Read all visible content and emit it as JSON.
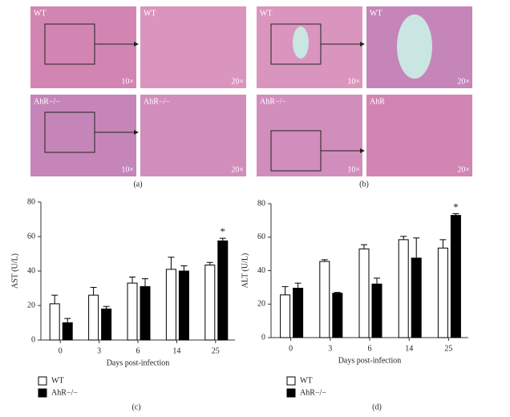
{
  "figure": {
    "panels": [
      {
        "label": "(a)",
        "tiles": [
          {
            "genotype": "WT",
            "magnification": "10×"
          },
          {
            "genotype": "WT",
            "magnification": "20×"
          },
          {
            "genotype": "AhR−/−",
            "magnification": "10×"
          },
          {
            "genotype": "AhR−/−",
            "magnification": "20×"
          }
        ]
      },
      {
        "label": "(b)",
        "tiles": [
          {
            "genotype": "WT",
            "magnification": "10×"
          },
          {
            "genotype": "WT",
            "magnification": "20×"
          },
          {
            "genotype": "AhR−/−",
            "magnification": "10×"
          },
          {
            "genotype": "AhR",
            "magnification": "20×"
          }
        ]
      }
    ]
  },
  "chart_data": [
    {
      "type": "bar",
      "panel_label": "(c)",
      "y_label": "AST (U/L)",
      "x_label": "Days post-infection",
      "categories": [
        "0",
        "3",
        "6",
        "14",
        "25"
      ],
      "ylim": [
        0,
        80
      ],
      "yticks": [
        0,
        20,
        40,
        60,
        80
      ],
      "annotation": "*",
      "series": [
        {
          "name": "WT",
          "color": "#ffffff",
          "values": [
            21,
            26,
            33,
            41,
            43.5
          ],
          "errors": [
            5,
            4.5,
            3.5,
            7,
            1.5
          ]
        },
        {
          "name": "AhR−/−",
          "color": "#000000",
          "values": [
            10,
            18,
            31,
            40,
            57.5
          ],
          "errors": [
            2.5,
            1.5,
            4.5,
            3,
            1.5
          ]
        }
      ]
    },
    {
      "type": "bar",
      "panel_label": "(d)",
      "y_label": "ALT (U/L)",
      "x_label": "Days post-infection",
      "categories": [
        "0",
        "3",
        "6",
        "14",
        "25"
      ],
      "ylim": [
        0,
        80
      ],
      "yticks": [
        0,
        20,
        40,
        60,
        80
      ],
      "annotation": "*",
      "series": [
        {
          "name": "WT",
          "color": "#ffffff",
          "values": [
            25.5,
            45.5,
            53,
            58.5,
            53.5
          ],
          "errors": [
            5,
            1,
            2.5,
            2,
            5
          ]
        },
        {
          "name": "AhR−/−",
          "color": "#000000",
          "values": [
            29.5,
            26.5,
            32,
            47.5,
            73
          ],
          "errors": [
            3,
            0.5,
            3.5,
            12,
            1
          ]
        }
      ]
    }
  ]
}
